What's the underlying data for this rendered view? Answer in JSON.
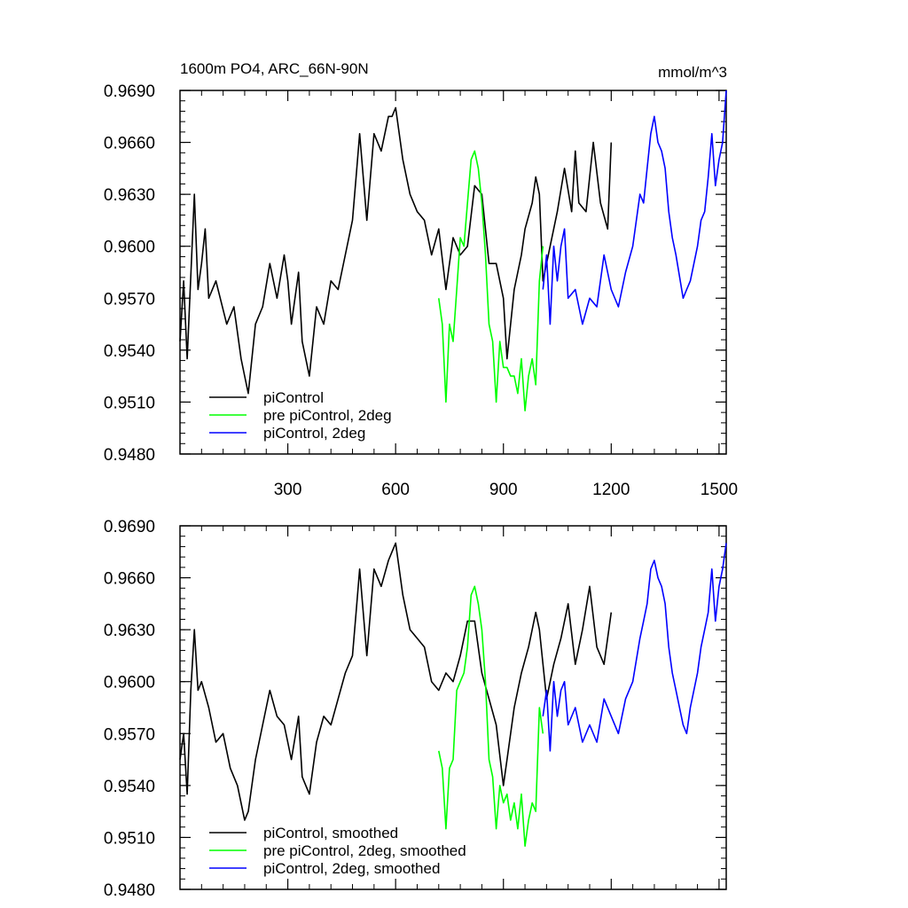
{
  "chart_data": [
    {
      "type": "line",
      "title": "1600m PO4, ARC_66N-90N",
      "units": "mmol/m^3",
      "xlim": [
        0,
        1520
      ],
      "ylim": [
        0.948,
        0.969
      ],
      "x_ticks": [
        "300",
        "600",
        "900",
        "1200",
        "1500"
      ],
      "y_ticks": [
        "0.9480",
        "0.9510",
        "0.9540",
        "0.9570",
        "0.9600",
        "0.9630",
        "0.9660",
        "0.9690"
      ],
      "legend_position": "bottom-left",
      "series": [
        {
          "name": "piControl",
          "color": "#000000",
          "x": [
            0,
            10,
            20,
            40,
            50,
            60,
            70,
            80,
            100,
            130,
            150,
            170,
            180,
            190,
            210,
            230,
            250,
            270,
            290,
            300,
            310,
            330,
            340,
            360,
            380,
            400,
            420,
            440,
            460,
            480,
            490,
            500,
            520,
            540,
            560,
            580,
            590,
            600,
            620,
            640,
            660,
            680,
            700,
            720,
            740,
            750,
            760,
            780,
            800,
            820,
            840,
            860,
            880,
            900,
            910,
            930,
            950,
            960,
            980,
            990,
            1000,
            1010,
            1030,
            1050,
            1070,
            1090,
            1100,
            1110,
            1130,
            1150,
            1170,
            1190,
            1200
          ],
          "y": [
            0.9545,
            0.958,
            0.9535,
            0.963,
            0.9575,
            0.959,
            0.961,
            0.957,
            0.958,
            0.9555,
            0.9565,
            0.9535,
            0.9525,
            0.9515,
            0.9555,
            0.9565,
            0.959,
            0.957,
            0.9595,
            0.958,
            0.9555,
            0.9585,
            0.9545,
            0.9525,
            0.9565,
            0.9555,
            0.958,
            0.9575,
            0.9595,
            0.9615,
            0.964,
            0.9665,
            0.9615,
            0.9665,
            0.9655,
            0.9675,
            0.9675,
            0.968,
            0.965,
            0.963,
            0.962,
            0.9615,
            0.9595,
            0.961,
            0.9575,
            0.959,
            0.9605,
            0.9595,
            0.96,
            0.9635,
            0.963,
            0.959,
            0.959,
            0.957,
            0.9535,
            0.9575,
            0.9595,
            0.961,
            0.9625,
            0.964,
            0.963,
            0.958,
            0.96,
            0.962,
            0.9645,
            0.962,
            0.9655,
            0.9625,
            0.962,
            0.966,
            0.9625,
            0.961,
            0.966
          ]
        },
        {
          "name": "pre piControl, 2deg",
          "color": "#00ff00",
          "x": [
            720,
            730,
            740,
            750,
            760,
            770,
            780,
            790,
            800,
            810,
            820,
            830,
            840,
            850,
            860,
            870,
            880,
            890,
            900,
            910,
            920,
            930,
            940,
            950,
            960,
            970,
            980,
            990,
            1000,
            1010
          ],
          "y": [
            0.957,
            0.9555,
            0.951,
            0.9555,
            0.9545,
            0.9575,
            0.9605,
            0.96,
            0.9625,
            0.965,
            0.9655,
            0.9645,
            0.9625,
            0.9595,
            0.9555,
            0.9545,
            0.951,
            0.9545,
            0.953,
            0.953,
            0.9525,
            0.9525,
            0.9515,
            0.9535,
            0.9505,
            0.9525,
            0.9535,
            0.952,
            0.958,
            0.96
          ]
        },
        {
          "name": "piControl, 2deg",
          "color": "#0000ff",
          "x": [
            1010,
            1020,
            1030,
            1040,
            1050,
            1060,
            1070,
            1080,
            1100,
            1120,
            1140,
            1160,
            1180,
            1200,
            1220,
            1240,
            1260,
            1280,
            1290,
            1300,
            1310,
            1320,
            1330,
            1340,
            1350,
            1360,
            1370,
            1380,
            1400,
            1410,
            1420,
            1440,
            1450,
            1460,
            1470,
            1480,
            1490,
            1500,
            1510,
            1520
          ],
          "y": [
            0.9575,
            0.9595,
            0.9555,
            0.96,
            0.958,
            0.96,
            0.961,
            0.957,
            0.9575,
            0.9555,
            0.957,
            0.9565,
            0.9595,
            0.9575,
            0.9565,
            0.9585,
            0.96,
            0.963,
            0.9625,
            0.9645,
            0.9665,
            0.9675,
            0.966,
            0.9655,
            0.9645,
            0.962,
            0.9605,
            0.9595,
            0.957,
            0.9575,
            0.958,
            0.96,
            0.9615,
            0.962,
            0.964,
            0.9665,
            0.9635,
            0.965,
            0.966,
            0.969
          ]
        }
      ]
    },
    {
      "type": "line",
      "title": "",
      "units": "",
      "xlim": [
        0,
        1520
      ],
      "ylim": [
        0.948,
        0.969
      ],
      "x_ticks": [],
      "y_ticks": [
        "0.9480",
        "0.9510",
        "0.9540",
        "0.9570",
        "0.9600",
        "0.9630",
        "0.9660",
        "0.9690"
      ],
      "legend_position": "bottom-left",
      "series": [
        {
          "name": "piControl, smoothed",
          "color": "#000000",
          "x": [
            0,
            10,
            20,
            30,
            40,
            50,
            60,
            80,
            100,
            120,
            140,
            160,
            180,
            190,
            210,
            230,
            250,
            270,
            290,
            310,
            330,
            340,
            360,
            380,
            400,
            420,
            440,
            460,
            480,
            490,
            500,
            520,
            540,
            560,
            580,
            590,
            600,
            620,
            640,
            660,
            680,
            700,
            720,
            740,
            760,
            780,
            800,
            820,
            840,
            860,
            880,
            900,
            910,
            930,
            950,
            970,
            990,
            1000,
            1020,
            1040,
            1060,
            1080,
            1100,
            1120,
            1140,
            1160,
            1180,
            1200
          ],
          "y": [
            0.9555,
            0.957,
            0.9535,
            0.9595,
            0.963,
            0.9595,
            0.96,
            0.9585,
            0.9565,
            0.957,
            0.955,
            0.954,
            0.952,
            0.9525,
            0.9555,
            0.9575,
            0.9595,
            0.958,
            0.9575,
            0.9555,
            0.958,
            0.9545,
            0.9535,
            0.9565,
            0.958,
            0.9575,
            0.959,
            0.9605,
            0.9615,
            0.964,
            0.9665,
            0.9615,
            0.9665,
            0.9655,
            0.967,
            0.9675,
            0.968,
            0.965,
            0.963,
            0.9625,
            0.962,
            0.96,
            0.9595,
            0.9605,
            0.96,
            0.9615,
            0.9635,
            0.9635,
            0.9605,
            0.959,
            0.9575,
            0.954,
            0.9555,
            0.9585,
            0.9605,
            0.962,
            0.964,
            0.963,
            0.959,
            0.961,
            0.9625,
            0.9645,
            0.961,
            0.963,
            0.9655,
            0.962,
            0.961,
            0.964
          ]
        },
        {
          "name": "pre piControl, 2deg, smoothed",
          "color": "#00ff00",
          "x": [
            720,
            730,
            740,
            750,
            760,
            770,
            780,
            790,
            800,
            810,
            820,
            830,
            840,
            850,
            860,
            870,
            880,
            890,
            900,
            910,
            920,
            930,
            940,
            950,
            960,
            970,
            980,
            990,
            1000,
            1010
          ],
          "y": [
            0.956,
            0.955,
            0.9515,
            0.955,
            0.9555,
            0.9595,
            0.96,
            0.9605,
            0.962,
            0.965,
            0.9655,
            0.9645,
            0.963,
            0.96,
            0.9555,
            0.9545,
            0.9515,
            0.954,
            0.953,
            0.9535,
            0.952,
            0.953,
            0.9515,
            0.9535,
            0.9505,
            0.952,
            0.953,
            0.9525,
            0.9585,
            0.957
          ]
        },
        {
          "name": "piControl, 2deg, smoothed",
          "color": "#0000ff",
          "x": [
            1010,
            1020,
            1030,
            1040,
            1050,
            1060,
            1070,
            1080,
            1100,
            1120,
            1140,
            1160,
            1180,
            1200,
            1220,
            1240,
            1260,
            1280,
            1290,
            1300,
            1310,
            1320,
            1330,
            1340,
            1350,
            1360,
            1370,
            1380,
            1400,
            1410,
            1420,
            1440,
            1450,
            1460,
            1470,
            1480,
            1490,
            1500,
            1510,
            1520
          ],
          "y": [
            0.958,
            0.9595,
            0.956,
            0.96,
            0.958,
            0.9595,
            0.96,
            0.9575,
            0.9585,
            0.9565,
            0.9575,
            0.9565,
            0.959,
            0.958,
            0.957,
            0.959,
            0.96,
            0.9625,
            0.9635,
            0.9645,
            0.9665,
            0.967,
            0.966,
            0.9655,
            0.9645,
            0.962,
            0.9605,
            0.9595,
            0.9575,
            0.957,
            0.9585,
            0.9605,
            0.962,
            0.963,
            0.964,
            0.9665,
            0.9635,
            0.9655,
            0.9665,
            0.968
          ]
        }
      ]
    }
  ]
}
